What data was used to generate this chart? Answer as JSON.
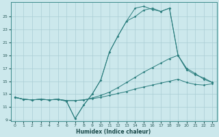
{
  "xlabel": "Humidex (Indice chaleur)",
  "bg_color": "#cce8ec",
  "line_color": "#2a7d7d",
  "grid_color": "#aacdd4",
  "xlim": [
    -0.5,
    23.5
  ],
  "ylim": [
    8.8,
    27.2
  ],
  "xticks": [
    0,
    1,
    2,
    3,
    4,
    5,
    6,
    7,
    8,
    9,
    10,
    11,
    12,
    13,
    14,
    15,
    16,
    17,
    18,
    19,
    20,
    21,
    22,
    23
  ],
  "yticks": [
    9,
    11,
    13,
    15,
    17,
    19,
    21,
    23,
    25
  ],
  "curve1_x": [
    0,
    1,
    2,
    3,
    4,
    5,
    6,
    7,
    8,
    9,
    10,
    11,
    12,
    13,
    14,
    15,
    16,
    17,
    18,
    19,
    20,
    21,
    22,
    23
  ],
  "curve1_y": [
    12.5,
    12.2,
    12.1,
    12.2,
    12.1,
    12.2,
    11.9,
    9.2,
    11.3,
    13.0,
    15.2,
    19.5,
    22.0,
    24.3,
    26.3,
    26.6,
    26.1,
    25.8,
    26.3,
    19.0,
    16.8,
    16.0,
    15.5,
    14.8
  ],
  "curve2_x": [
    0,
    1,
    2,
    3,
    4,
    5,
    6,
    7,
    8,
    9,
    10,
    11,
    12,
    13,
    14,
    15,
    16,
    17,
    18,
    19,
    20,
    21,
    22,
    23
  ],
  "curve2_y": [
    12.5,
    12.2,
    12.1,
    12.2,
    12.1,
    12.2,
    11.9,
    9.2,
    11.3,
    13.0,
    15.2,
    19.5,
    22.0,
    24.3,
    25.0,
    26.0,
    26.3,
    25.8,
    26.3,
    19.0,
    16.8,
    null,
    null,
    null
  ],
  "curve3_x": [
    0,
    1,
    2,
    3,
    4,
    5,
    6,
    7,
    8,
    9,
    10,
    11,
    12,
    13,
    14,
    15,
    16,
    17,
    18,
    19,
    20,
    21,
    22,
    23
  ],
  "curve3_y": [
    12.5,
    12.2,
    12.1,
    12.2,
    12.1,
    12.2,
    12.0,
    12.0,
    12.1,
    12.4,
    12.8,
    13.3,
    14.0,
    14.8,
    15.6,
    16.4,
    17.1,
    17.8,
    18.5,
    19.0,
    17.0,
    16.2,
    15.3,
    14.8
  ],
  "curve4_x": [
    0,
    1,
    2,
    3,
    4,
    5,
    6,
    7,
    8,
    9,
    10,
    11,
    12,
    13,
    14,
    15,
    16,
    17,
    18,
    19,
    20,
    21,
    22,
    23
  ],
  "curve4_y": [
    12.5,
    12.2,
    12.1,
    12.2,
    12.1,
    12.2,
    12.0,
    12.0,
    12.1,
    12.3,
    12.5,
    12.8,
    13.1,
    13.4,
    13.8,
    14.1,
    14.4,
    14.7,
    15.0,
    15.3,
    14.8,
    14.5,
    14.4,
    14.6
  ]
}
